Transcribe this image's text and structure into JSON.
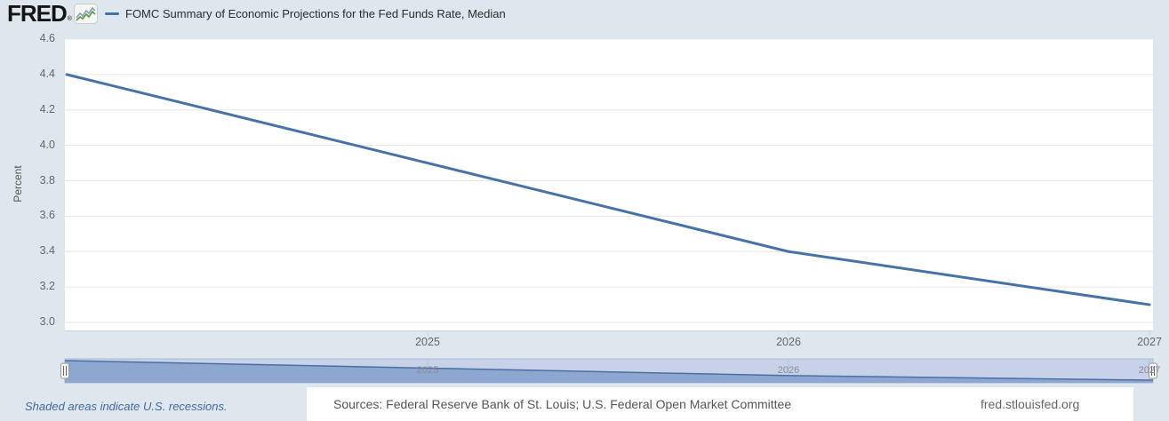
{
  "header": {
    "logo": "FRED",
    "registered_mark": "®",
    "legend_label": "FOMC Summary of Economic Projections for the Fed Funds Rate, Median"
  },
  "chart_data": {
    "type": "line",
    "title": "FOMC Summary of Economic Projections for the Fed Funds Rate, Median",
    "xlabel": "",
    "ylabel": "Percent",
    "x": [
      2024,
      2025,
      2026,
      2027
    ],
    "series": [
      {
        "name": "FOMC Summary of Economic Projections for the Fed Funds Rate, Median",
        "values": [
          4.4,
          3.9,
          3.4,
          3.1
        ],
        "color": "#4572a7"
      }
    ],
    "ylim": [
      2.95,
      4.6
    ],
    "yticks": [
      4.6,
      4.4,
      4.2,
      4.0,
      3.8,
      3.6,
      3.4,
      3.2,
      3.0
    ],
    "xticks": [
      2025,
      2026,
      2027
    ],
    "grid": true,
    "legend_position": "top-left"
  },
  "range_selector": {
    "year_labels": [
      2025,
      2026,
      2027
    ],
    "selection": "full-range"
  },
  "footer": {
    "recession_note": "Shaded areas indicate U.S. recessions.",
    "sources": "Sources: Federal Reserve Bank of St. Louis; U.S. Federal Open Market Committee",
    "site_url": "fred.stlouisfed.org"
  },
  "colors": {
    "page_background": "#dee6ee",
    "plot_background": "#ffffff",
    "gridline": "#e6e6e6",
    "axis_line": "#ccd6eb",
    "series_line": "#4572a7",
    "navigator_background": "#c7d2e8",
    "navigator_area_fill": "#8da7d1",
    "navigator_line": "#4a6fa3",
    "navigator_border": "#aab8d0",
    "handle_fill": "#f7f7f7",
    "handle_border": "#999999",
    "recession_note_text": "#44689d"
  }
}
